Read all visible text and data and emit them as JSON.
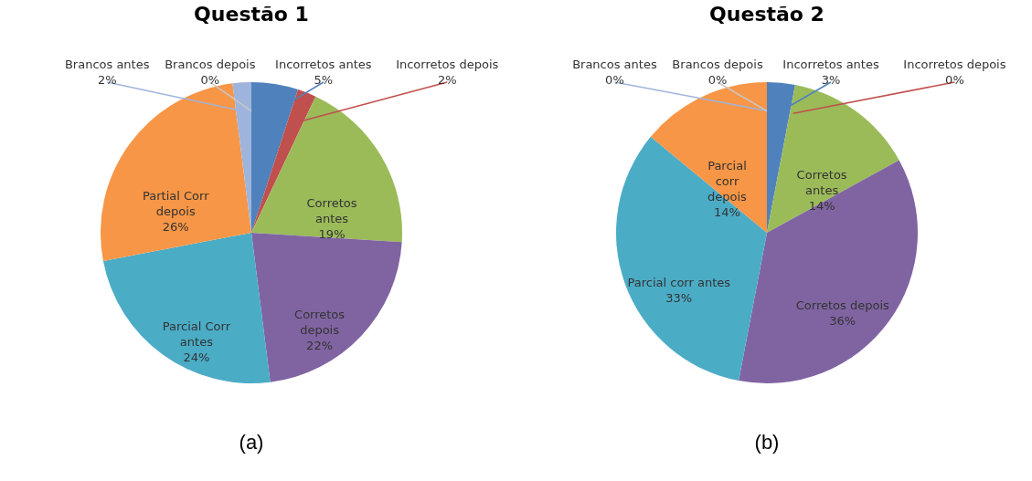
{
  "chart_data": [
    {
      "type": "pie",
      "title": "Questão 1",
      "categories": [
        "Incorretos antes",
        "Incorretos depois",
        "Corretos antes",
        "Corretos depois",
        "Parcial Corr antes",
        "Partial Corr depois",
        "Brancos antes",
        "Brancos depois"
      ],
      "values": [
        5,
        2,
        19,
        22,
        24,
        26,
        2,
        0
      ],
      "value_labels": [
        "5%",
        "2%",
        "19%",
        "22%",
        "24%",
        "26%",
        "2%",
        "0%"
      ],
      "colors": [
        "#4f81bd",
        "#c0504d",
        "#9bbb59",
        "#8064a2",
        "#4bacc6",
        "#f79646",
        "#9fb4dc",
        "#c8c8c8"
      ],
      "annotations": [
        "(a)"
      ]
    },
    {
      "type": "pie",
      "title": "Questão 2",
      "categories": [
        "Incorretos antes",
        "Incorretos depois",
        "Corretos antes",
        "Corretos depois",
        "Parcial corr antes",
        "Parcial corr depois",
        "Brancos antes",
        "Brancos depois"
      ],
      "values": [
        3,
        0,
        14,
        36,
        33,
        14,
        0,
        0
      ],
      "value_labels": [
        "3%",
        "0%",
        "14%",
        "36%",
        "33%",
        "14%",
        "0%",
        "0%"
      ],
      "colors": [
        "#4f81bd",
        "#c0504d",
        "#9bbb59",
        "#8064a2",
        "#4bacc6",
        "#f79646",
        "#9fb4dc",
        "#c8c8c8"
      ],
      "annotations": [
        "(b)"
      ]
    }
  ]
}
